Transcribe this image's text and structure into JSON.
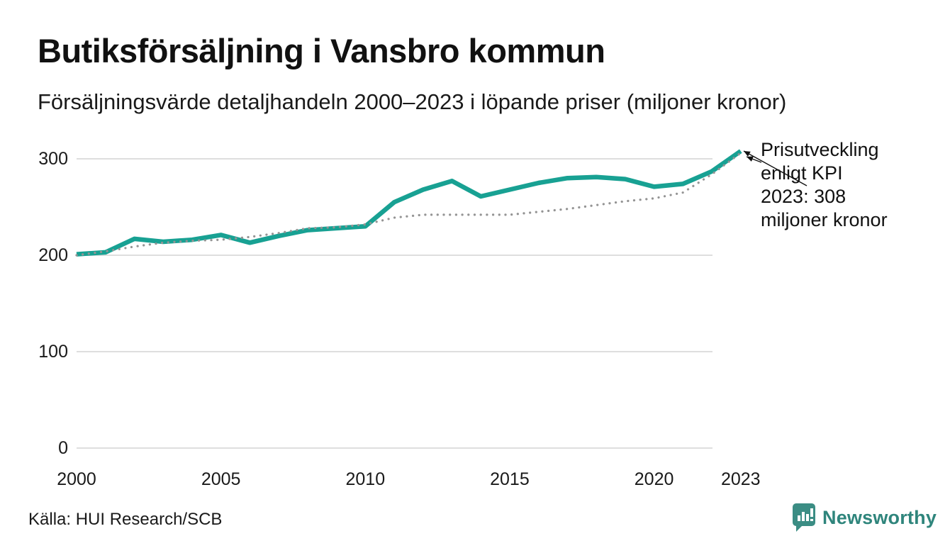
{
  "chart_data": {
    "type": "line",
    "title": "Butiksförsäljning i Vansbro kommun",
    "subtitle": "Försäljningsvärde detaljhandeln 2000–2023 i löpande priser (miljoner kronor)",
    "unit": "miljoner kronor",
    "x": [
      2000,
      2001,
      2002,
      2003,
      2004,
      2005,
      2006,
      2007,
      2008,
      2009,
      2010,
      2011,
      2012,
      2013,
      2014,
      2015,
      2016,
      2017,
      2018,
      2019,
      2020,
      2021,
      2022,
      2023
    ],
    "series": [
      {
        "name": "Butiksförsäljning i löpande priser",
        "style": "solid",
        "color": "#18a193",
        "values": [
          201,
          203,
          217,
          214,
          216,
          221,
          213,
          220,
          226,
          228,
          230,
          255,
          268,
          277,
          261,
          268,
          275,
          280,
          281,
          279,
          271,
          274,
          287,
          308
        ]
      },
      {
        "name": "Prisutveckling enligt KPI",
        "style": "dotted",
        "color": "#949494",
        "values": [
          200,
          204,
          209,
          213,
          215,
          216,
          219,
          223,
          228,
          229,
          232,
          239,
          242,
          242,
          242,
          242,
          245,
          248,
          252,
          256,
          259,
          265,
          284,
          306
        ]
      }
    ],
    "yticks": [
      "0",
      "100",
      "200",
      "300"
    ],
    "xticks": [
      "2000",
      "2005",
      "2010",
      "2015",
      "2020",
      "2023"
    ],
    "ylim": [
      0,
      340
    ],
    "grid": "horizontal",
    "legend_position": "none",
    "annotations": [
      {
        "text": "Prisutveckling enligt KPI",
        "points_to": "end of dotted KPI line at 2023"
      },
      {
        "text": "2023: 308 miljoner kronor",
        "points_to": "end of solid sales line at 2023"
      }
    ],
    "annotation_kpi": "Prisutveckling enligt KPI",
    "annotation_value": "2023: 308 miljoner kronor",
    "source": "Källa: HUI Research/SCB"
  },
  "brand": {
    "name": "Newsworthy",
    "color": "#2f857c",
    "icon": "newsworthy-speech-bubble-chart-icon"
  }
}
